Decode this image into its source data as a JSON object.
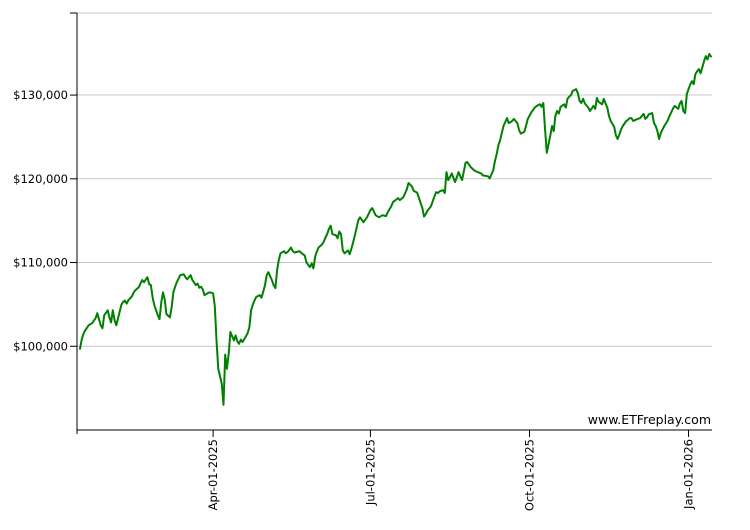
{
  "watermark": {
    "text": "www.ETFreplay.com"
  },
  "chart_data": {
    "type": "line",
    "title": "",
    "legend": false,
    "grid": "horizontal",
    "colors": {
      "line": "#008000",
      "grid": "#c9c9c9",
      "axis": "#000000",
      "text": "#000000",
      "background": "#ffffff"
    },
    "ylim": [
      90000,
      139800
    ],
    "xlim_days": [
      0,
      365
    ],
    "y_ticks": [
      {
        "value": 100000,
        "label": "$100,000"
      },
      {
        "value": 110000,
        "label": "$110,000"
      },
      {
        "value": 120000,
        "label": "$120,000"
      },
      {
        "value": 130000,
        "label": "$130,000"
      }
    ],
    "x_ticks": [
      {
        "day": 77,
        "label": "Apr-01-2025"
      },
      {
        "day": 168,
        "label": "Jul-01-2025"
      },
      {
        "day": 260,
        "label": "Oct-01-2025"
      },
      {
        "day": 352,
        "label": "Jan-01-2026"
      }
    ],
    "series": [
      {
        "color": "#008000",
        "points": [
          [
            0,
            99700
          ],
          [
            1,
            100800
          ],
          [
            2,
            101500
          ],
          [
            3,
            101900
          ],
          [
            5,
            102500
          ],
          [
            6,
            102650
          ],
          [
            7,
            102750
          ],
          [
            9,
            103350
          ],
          [
            10,
            103950
          ],
          [
            12,
            102500
          ],
          [
            13,
            102150
          ],
          [
            14,
            103700
          ],
          [
            16,
            104300
          ],
          [
            17,
            103450
          ],
          [
            18,
            102850
          ],
          [
            19,
            104300
          ],
          [
            20,
            103100
          ],
          [
            21,
            102500
          ],
          [
            23,
            104200
          ],
          [
            24,
            105000
          ],
          [
            25,
            105300
          ],
          [
            26,
            105450
          ],
          [
            27,
            105100
          ],
          [
            28,
            105500
          ],
          [
            30,
            105950
          ],
          [
            31,
            106400
          ],
          [
            32,
            106700
          ],
          [
            34,
            107050
          ],
          [
            35,
            107500
          ],
          [
            36,
            107900
          ],
          [
            37,
            107650
          ],
          [
            39,
            108250
          ],
          [
            40,
            107400
          ],
          [
            41,
            107300
          ],
          [
            42,
            105850
          ],
          [
            43,
            104900
          ],
          [
            45,
            103700
          ],
          [
            46,
            103250
          ],
          [
            47,
            105250
          ],
          [
            48,
            106450
          ],
          [
            49,
            105600
          ],
          [
            50,
            103850
          ],
          [
            52,
            103450
          ],
          [
            53,
            104600
          ],
          [
            54,
            106450
          ],
          [
            55,
            107100
          ],
          [
            56,
            107650
          ],
          [
            58,
            108500
          ],
          [
            60,
            108600
          ],
          [
            61,
            108250
          ],
          [
            62,
            108000
          ],
          [
            64,
            108500
          ],
          [
            65,
            107900
          ],
          [
            67,
            107300
          ],
          [
            68,
            107500
          ],
          [
            69,
            107000
          ],
          [
            70,
            107100
          ],
          [
            71,
            106800
          ],
          [
            72,
            106100
          ],
          [
            74,
            106350
          ],
          [
            75,
            106450
          ],
          [
            76,
            106400
          ],
          [
            77,
            106300
          ],
          [
            78,
            104800
          ],
          [
            79,
            100500
          ],
          [
            80,
            97300
          ],
          [
            82,
            95500
          ],
          [
            83,
            93000
          ],
          [
            84,
            99000
          ],
          [
            85,
            97300
          ],
          [
            86,
            99100
          ],
          [
            87,
            101700
          ],
          [
            89,
            100700
          ],
          [
            90,
            101300
          ],
          [
            91,
            100600
          ],
          [
            92,
            100300
          ],
          [
            93,
            100800
          ],
          [
            94,
            100500
          ],
          [
            96,
            101200
          ],
          [
            97,
            101600
          ],
          [
            98,
            102300
          ],
          [
            99,
            104300
          ],
          [
            100,
            105000
          ],
          [
            101,
            105500
          ],
          [
            102,
            105900
          ],
          [
            104,
            106100
          ],
          [
            105,
            105800
          ],
          [
            106,
            106500
          ],
          [
            107,
            107300
          ],
          [
            108,
            108500
          ],
          [
            109,
            108850
          ],
          [
            111,
            107900
          ],
          [
            112,
            107300
          ],
          [
            113,
            106950
          ],
          [
            114,
            109100
          ],
          [
            115,
            110300
          ],
          [
            116,
            111100
          ],
          [
            118,
            111350
          ],
          [
            119,
            111100
          ],
          [
            120,
            111250
          ],
          [
            121,
            111500
          ],
          [
            122,
            111800
          ],
          [
            123,
            111400
          ],
          [
            124,
            111200
          ],
          [
            126,
            111300
          ],
          [
            127,
            111350
          ],
          [
            128,
            111150
          ],
          [
            129,
            111000
          ],
          [
            130,
            110850
          ],
          [
            131,
            110000
          ],
          [
            133,
            109450
          ],
          [
            134,
            109900
          ],
          [
            135,
            109300
          ],
          [
            136,
            110650
          ],
          [
            137,
            111300
          ],
          [
            138,
            111800
          ],
          [
            140,
            112150
          ],
          [
            141,
            112500
          ],
          [
            142,
            113000
          ],
          [
            143,
            113400
          ],
          [
            144,
            114000
          ],
          [
            145,
            114400
          ],
          [
            146,
            113400
          ],
          [
            148,
            113250
          ],
          [
            149,
            112900
          ],
          [
            150,
            113700
          ],
          [
            151,
            113400
          ],
          [
            152,
            111450
          ],
          [
            153,
            111100
          ],
          [
            155,
            111450
          ],
          [
            156,
            111000
          ],
          [
            157,
            111650
          ],
          [
            158,
            112400
          ],
          [
            159,
            113250
          ],
          [
            161,
            115050
          ],
          [
            162,
            115400
          ],
          [
            164,
            114800
          ],
          [
            165,
            115100
          ],
          [
            166,
            115400
          ],
          [
            168,
            116250
          ],
          [
            169,
            116500
          ],
          [
            171,
            115650
          ],
          [
            173,
            115400
          ],
          [
            175,
            115650
          ],
          [
            177,
            115550
          ],
          [
            178,
            116000
          ],
          [
            180,
            116700
          ],
          [
            181,
            117200
          ],
          [
            184,
            117700
          ],
          [
            185,
            117450
          ],
          [
            187,
            117800
          ],
          [
            189,
            118700
          ],
          [
            190,
            119500
          ],
          [
            192,
            119100
          ],
          [
            193,
            118550
          ],
          [
            195,
            118350
          ],
          [
            196,
            117750
          ],
          [
            197,
            117100
          ],
          [
            198,
            116550
          ],
          [
            199,
            115500
          ],
          [
            200,
            115800
          ],
          [
            201,
            116200
          ],
          [
            203,
            116700
          ],
          [
            205,
            117900
          ],
          [
            206,
            118400
          ],
          [
            207,
            118300
          ],
          [
            208,
            118500
          ],
          [
            210,
            118650
          ],
          [
            211,
            118300
          ],
          [
            212,
            120800
          ],
          [
            213,
            119850
          ],
          [
            214,
            120200
          ],
          [
            215,
            120650
          ],
          [
            217,
            119600
          ],
          [
            219,
            120800
          ],
          [
            220,
            120300
          ],
          [
            221,
            119850
          ],
          [
            223,
            121900
          ],
          [
            224,
            122000
          ],
          [
            226,
            121400
          ],
          [
            228,
            121000
          ],
          [
            230,
            120800
          ],
          [
            232,
            120650
          ],
          [
            233,
            120400
          ],
          [
            236,
            120300
          ],
          [
            237,
            120050
          ],
          [
            239,
            121000
          ],
          [
            240,
            122100
          ],
          [
            241,
            122900
          ],
          [
            242,
            124000
          ],
          [
            243,
            124600
          ],
          [
            244,
            125450
          ],
          [
            245,
            126300
          ],
          [
            247,
            127250
          ],
          [
            248,
            126650
          ],
          [
            250,
            126900
          ],
          [
            251,
            127150
          ],
          [
            252,
            126900
          ],
          [
            253,
            126650
          ],
          [
            254,
            125800
          ],
          [
            255,
            125400
          ],
          [
            257,
            125600
          ],
          [
            258,
            126300
          ],
          [
            259,
            127150
          ],
          [
            261,
            127900
          ],
          [
            263,
            128500
          ],
          [
            265,
            128800
          ],
          [
            266,
            128900
          ],
          [
            267,
            128600
          ],
          [
            268,
            129050
          ],
          [
            269,
            126000
          ],
          [
            270,
            123100
          ],
          [
            272,
            125100
          ],
          [
            273,
            126300
          ],
          [
            274,
            125700
          ],
          [
            275,
            127500
          ],
          [
            276,
            128100
          ],
          [
            277,
            127800
          ],
          [
            278,
            128600
          ],
          [
            280,
            128900
          ],
          [
            281,
            128500
          ],
          [
            282,
            129550
          ],
          [
            283,
            129800
          ],
          [
            284,
            130000
          ],
          [
            285,
            130500
          ],
          [
            287,
            130700
          ],
          [
            288,
            130200
          ],
          [
            289,
            129300
          ],
          [
            290,
            129050
          ],
          [
            291,
            129550
          ],
          [
            292,
            129000
          ],
          [
            294,
            128500
          ],
          [
            295,
            128100
          ],
          [
            296,
            128400
          ],
          [
            297,
            128700
          ],
          [
            298,
            128350
          ],
          [
            299,
            129650
          ],
          [
            300,
            129200
          ],
          [
            302,
            128900
          ],
          [
            303,
            129550
          ],
          [
            304,
            129000
          ],
          [
            305,
            128500
          ],
          [
            306,
            127500
          ],
          [
            307,
            126900
          ],
          [
            309,
            126200
          ],
          [
            310,
            125200
          ],
          [
            311,
            124750
          ],
          [
            312,
            125300
          ],
          [
            313,
            125900
          ],
          [
            314,
            126300
          ],
          [
            316,
            126900
          ],
          [
            317,
            127050
          ],
          [
            318,
            127250
          ],
          [
            319,
            127250
          ],
          [
            320,
            126900
          ],
          [
            321,
            127000
          ],
          [
            322,
            127100
          ],
          [
            324,
            127250
          ],
          [
            325,
            127500
          ],
          [
            326,
            127750
          ],
          [
            327,
            127150
          ],
          [
            328,
            127350
          ],
          [
            329,
            127700
          ],
          [
            331,
            127850
          ],
          [
            332,
            126650
          ],
          [
            333,
            126300
          ],
          [
            334,
            125700
          ],
          [
            335,
            124750
          ],
          [
            336,
            125500
          ],
          [
            338,
            126300
          ],
          [
            339,
            126650
          ],
          [
            340,
            127000
          ],
          [
            341,
            127500
          ],
          [
            342,
            127900
          ],
          [
            343,
            128400
          ],
          [
            344,
            128700
          ],
          [
            346,
            128350
          ],
          [
            347,
            129000
          ],
          [
            348,
            129300
          ],
          [
            349,
            128100
          ],
          [
            350,
            127850
          ],
          [
            351,
            130100
          ],
          [
            353,
            131300
          ],
          [
            354,
            131650
          ],
          [
            355,
            131300
          ],
          [
            356,
            132500
          ],
          [
            357,
            132850
          ],
          [
            358,
            133100
          ],
          [
            359,
            132600
          ],
          [
            361,
            134050
          ],
          [
            362,
            134650
          ],
          [
            363,
            134250
          ],
          [
            364,
            134900
          ],
          [
            365,
            134600
          ]
        ]
      }
    ]
  }
}
